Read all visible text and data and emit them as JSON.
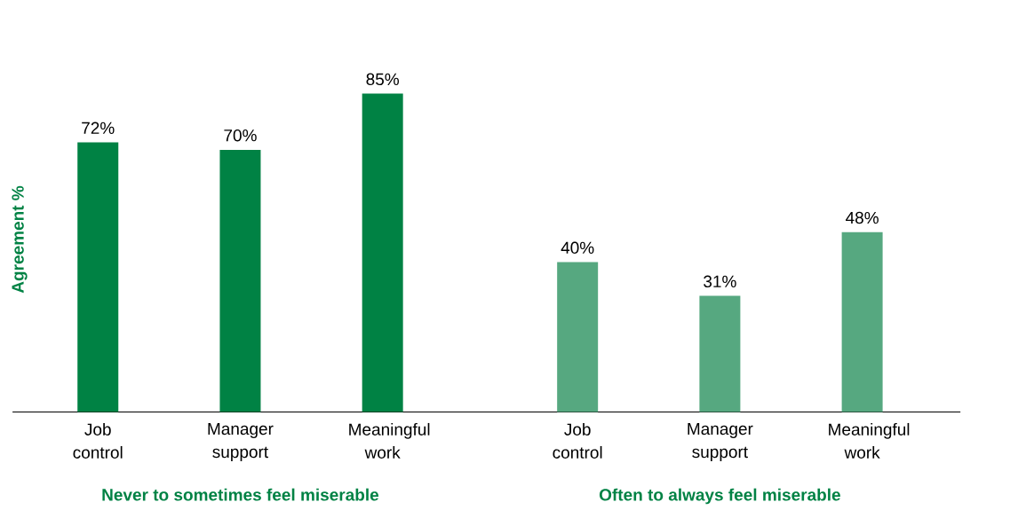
{
  "chart_data": {
    "type": "bar",
    "ylabel": "Agreement %",
    "categories": [
      "Job control",
      "Manager support",
      "Meaningful work",
      "Job control",
      "Manager support",
      "Meaningful work"
    ],
    "values": [
      72,
      70,
      85,
      40,
      31,
      48
    ],
    "value_labels": [
      "72%",
      "70%",
      "85%",
      "40%",
      "31%",
      "48%"
    ],
    "colors": [
      "#008244",
      "#008244",
      "#008244",
      "#56a880",
      "#56a880",
      "#56a880"
    ],
    "annotations": [
      "Never to sometimes feel miserable",
      "Often to always feel miserable"
    ]
  }
}
